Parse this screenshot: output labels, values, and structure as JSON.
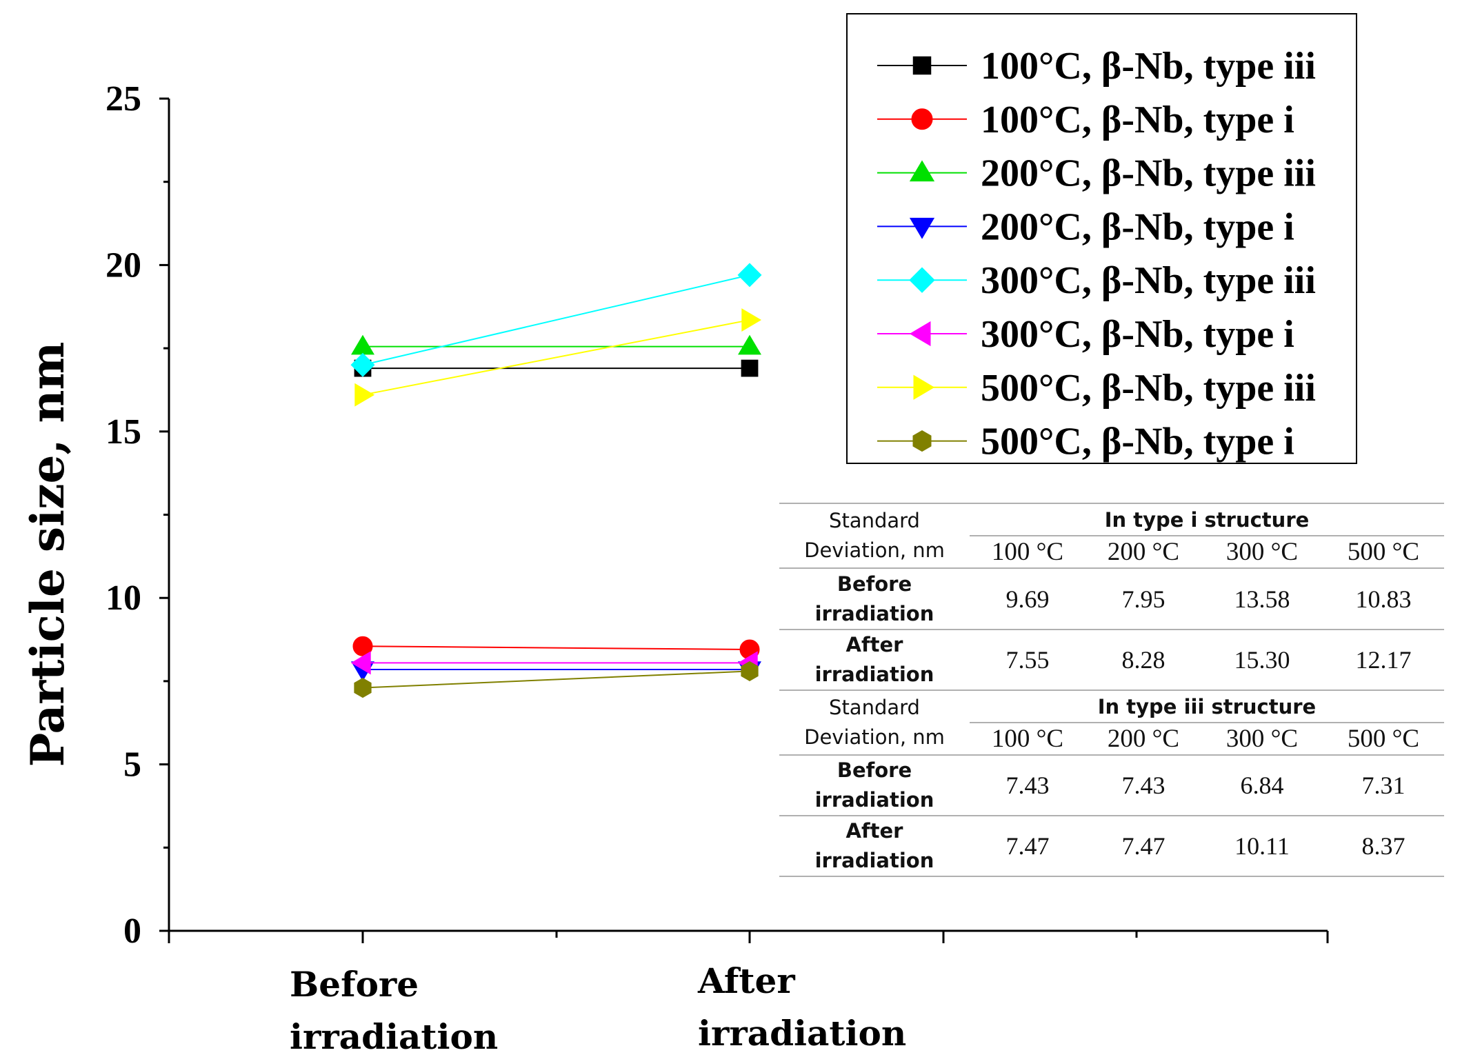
{
  "chart_data": {
    "type": "line",
    "categories": [
      "Before irradiation",
      "After irradiation"
    ],
    "category_lines": [
      [
        "Before",
        "irradiation"
      ],
      [
        "After",
        "irradiation"
      ]
    ],
    "ylabel": "Particle size, nm",
    "xlabel": "",
    "ylim": [
      0,
      25
    ],
    "yticks": [
      0,
      5,
      10,
      15,
      20,
      25
    ],
    "x_major_ticks": 6,
    "legend_position": "top-right",
    "series": [
      {
        "name": "100°C, β-Nb, type iii",
        "color": "#000000",
        "marker": "square",
        "values": [
          16.9,
          16.9
        ]
      },
      {
        "name": "100°C, β-Nb, type i",
        "color": "#ff0000",
        "marker": "circle",
        "values": [
          8.55,
          8.45
        ]
      },
      {
        "name": "200°C, β-Nb, type iii",
        "color": "#00e000",
        "marker": "triangle-up",
        "values": [
          17.55,
          17.55
        ]
      },
      {
        "name": "200°C, β-Nb, type i",
        "color": "#0000ff",
        "marker": "triangle-down",
        "values": [
          7.85,
          7.85
        ]
      },
      {
        "name": "300°C, β-Nb, type iii",
        "color": "#00ffff",
        "marker": "diamond",
        "values": [
          17.0,
          19.7
        ]
      },
      {
        "name": "300°C, β-Nb, type i",
        "color": "#ff00ff",
        "marker": "triangle-left",
        "values": [
          8.05,
          8.05
        ]
      },
      {
        "name": "500°C, β-Nb, type iii",
        "color": "#ffff00",
        "marker": "triangle-right",
        "values": [
          16.1,
          18.35
        ]
      },
      {
        "name": "500°C, β-Nb, type i",
        "color": "#808000",
        "marker": "hexagon",
        "values": [
          7.3,
          7.8
        ]
      }
    ]
  },
  "table": {
    "corner_label_line1": "Standard",
    "corner_label_line2": "Deviation, nm",
    "groups": [
      {
        "title": "In type i structure",
        "temps": [
          "100 °C",
          "200 °C",
          "300 °C",
          "500 °C"
        ],
        "rows": [
          {
            "label_line1": "Before",
            "label_line2": "irradiation",
            "values": [
              "9.69",
              "7.95",
              "13.58",
              "10.83"
            ]
          },
          {
            "label_line1": "After",
            "label_line2": "irradiation",
            "values": [
              "7.55",
              "8.28",
              "15.30",
              "12.17"
            ]
          }
        ]
      },
      {
        "title": "In type iii structure",
        "temps": [
          "100 °C",
          "200 °C",
          "300 °C",
          "500 °C"
        ],
        "rows": [
          {
            "label_line1": "Before",
            "label_line2": "irradiation",
            "values": [
              "7.43",
              "7.43",
              "6.84",
              "7.31"
            ]
          },
          {
            "label_line1": "After",
            "label_line2": "irradiation",
            "values": [
              "7.47",
              "7.47",
              "10.11",
              "8.37"
            ]
          }
        ]
      }
    ]
  }
}
